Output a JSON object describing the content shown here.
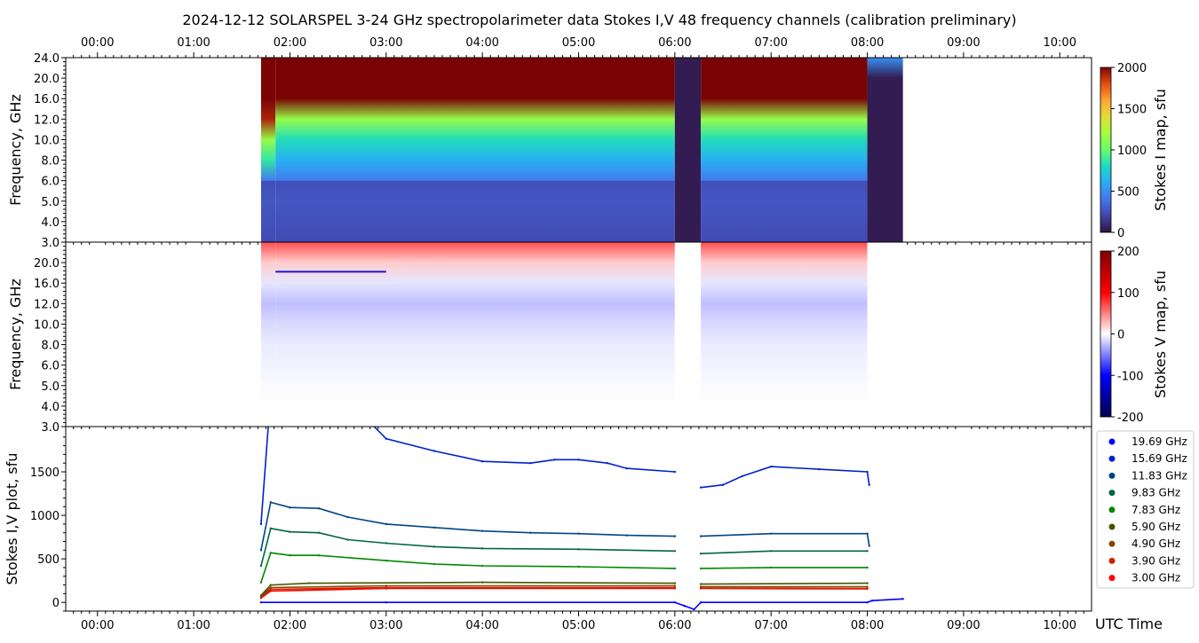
{
  "chart_data": {
    "type": "heatmap",
    "title": "2024-12-12  SOLARSPEL  3-24 GHz spectropolarimeter data   Stokes I,V   48 frequency channels   (calibration preliminary)",
    "time_axis": {
      "label": "UTC Time",
      "range_hours": [
        -0.33,
        10.33
      ],
      "ticks": [
        "00:00",
        "01:00",
        "02:00",
        "03:00",
        "04:00",
        "05:00",
        "06:00",
        "07:00",
        "08:00",
        "09:00",
        "10:00"
      ]
    },
    "freq_ticks": [
      "3.0",
      "4.0",
      "5.0",
      "6.0",
      "8.0",
      "10.0",
      "12.0",
      "16.0",
      "20.0",
      "24.0"
    ],
    "freq_ylabel": "Frequency, GHz",
    "segments": [
      {
        "start": 1.7,
        "end": 1.85,
        "kind": "transient"
      },
      {
        "start": 1.85,
        "end": 6.0,
        "kind": "data"
      },
      {
        "start": 6.0,
        "end": 6.27,
        "kind": "gap"
      },
      {
        "start": 6.27,
        "end": 8.0,
        "kind": "data"
      },
      {
        "start": 8.0,
        "end": 8.37,
        "kind": "gap"
      }
    ],
    "stokes_I_map": {
      "colorbar_label": "Stokes I map, sfu",
      "range": [
        0,
        2000
      ],
      "colorbar_ticks": [
        "0",
        "500",
        "1000",
        "1500",
        "2000"
      ],
      "profile_by_tick": [
        220,
        250,
        270,
        420,
        620,
        820,
        1150,
        2000,
        2000,
        2000
      ],
      "gap_value": 40
    },
    "stokes_V_map": {
      "colorbar_label": "Stokes V map, sfu",
      "range": [
        -200,
        200
      ],
      "colorbar_ticks": [
        "-200",
        "-100",
        "0",
        "100",
        "200"
      ],
      "profile_by_tick": [
        0,
        0,
        -2,
        -5,
        -8,
        -15,
        -25,
        -10,
        20,
        70
      ],
      "gap_value": 0
    },
    "line_plot": {
      "ylabel": "Stokes I,V plot, sfu",
      "ylim": [
        -100,
        2020
      ],
      "yticks": [
        "0",
        "500",
        "1000",
        "1500"
      ],
      "ytick_values": [
        0,
        500,
        1000,
        1500
      ],
      "series": [
        {
          "name": "19.69 GHz",
          "color": "#0000ff",
          "points": [
            [
              1.7,
              0
            ],
            [
              3,
              0
            ],
            [
              6,
              0
            ],
            [
              6.1,
              -40
            ],
            [
              6.2,
              -80
            ],
            [
              6.27,
              0
            ],
            [
              8,
              0
            ],
            [
              8.05,
              20
            ],
            [
              8.37,
              40
            ]
          ]
        },
        {
          "name": "15.69 GHz",
          "color": "#0022cc",
          "points": [
            [
              1.7,
              900
            ],
            [
              1.78,
              2100
            ],
            null,
            [
              2.85,
              2050
            ],
            [
              3.0,
              1880
            ],
            [
              3.5,
              1740
            ],
            [
              4.0,
              1620
            ],
            [
              4.5,
              1600
            ],
            [
              4.75,
              1640
            ],
            [
              5.0,
              1640
            ],
            [
              5.3,
              1600
            ],
            [
              5.5,
              1540
            ],
            [
              6.0,
              1500
            ],
            null,
            [
              6.27,
              1320
            ],
            [
              6.5,
              1350
            ],
            [
              6.7,
              1450
            ],
            [
              7.0,
              1560
            ],
            [
              7.5,
              1530
            ],
            [
              8.0,
              1500
            ],
            [
              8.02,
              1350
            ]
          ]
        },
        {
          "name": "11.83 GHz",
          "color": "#004488",
          "points": [
            [
              1.7,
              600
            ],
            [
              1.8,
              1150
            ],
            [
              2.0,
              1090
            ],
            [
              2.3,
              1080
            ],
            [
              2.6,
              980
            ],
            [
              3.0,
              900
            ],
            [
              3.5,
              860
            ],
            [
              4.0,
              820
            ],
            [
              4.5,
              800
            ],
            [
              5.0,
              790
            ],
            [
              5.5,
              770
            ],
            [
              6.0,
              760
            ],
            null,
            [
              6.27,
              760
            ],
            [
              7.0,
              790
            ],
            [
              8.0,
              790
            ],
            [
              8.02,
              650
            ]
          ]
        },
        {
          "name": "9.83 GHz",
          "color": "#006644",
          "points": [
            [
              1.7,
              420
            ],
            [
              1.8,
              850
            ],
            [
              2.0,
              810
            ],
            [
              2.3,
              800
            ],
            [
              2.6,
              720
            ],
            [
              3.0,
              680
            ],
            [
              3.5,
              640
            ],
            [
              4.0,
              620
            ],
            [
              5.0,
              610
            ],
            [
              6.0,
              590
            ],
            null,
            [
              6.27,
              560
            ],
            [
              7.0,
              590
            ],
            [
              8.0,
              590
            ]
          ]
        },
        {
          "name": "7.83 GHz",
          "color": "#008800",
          "points": [
            [
              1.7,
              230
            ],
            [
              1.8,
              570
            ],
            [
              2.0,
              540
            ],
            [
              2.3,
              540
            ],
            [
              3.0,
              480
            ],
            [
              3.5,
              440
            ],
            [
              4.0,
              420
            ],
            [
              5.0,
              410
            ],
            [
              6.0,
              390
            ],
            null,
            [
              6.27,
              390
            ],
            [
              7.0,
              400
            ],
            [
              8.0,
              400
            ]
          ]
        },
        {
          "name": "5.90 GHz",
          "color": "#445500",
          "points": [
            [
              1.7,
              80
            ],
            [
              1.8,
              200
            ],
            [
              2.2,
              220
            ],
            [
              4.0,
              230
            ],
            [
              6.0,
              220
            ],
            null,
            [
              6.27,
              210
            ],
            [
              8.0,
              220
            ]
          ]
        },
        {
          "name": "4.90 GHz",
          "color": "#884400",
          "points": [
            [
              1.7,
              70
            ],
            [
              1.8,
              170
            ],
            [
              3.0,
              190
            ],
            [
              6.0,
              190
            ],
            null,
            [
              6.27,
              180
            ],
            [
              8.0,
              180
            ]
          ]
        },
        {
          "name": "3.90 GHz",
          "color": "#cc2200",
          "points": [
            [
              1.7,
              60
            ],
            [
              1.8,
              150
            ],
            [
              3.0,
              170
            ],
            [
              6.0,
              170
            ],
            null,
            [
              6.27,
              165
            ],
            [
              8.0,
              160
            ]
          ]
        },
        {
          "name": "3.00 GHz",
          "color": "#ff0000",
          "points": [
            [
              1.7,
              50
            ],
            [
              1.8,
              130
            ],
            [
              3.0,
              160
            ],
            [
              6.0,
              160
            ],
            null,
            [
              6.27,
              160
            ],
            [
              8.0,
              155
            ]
          ]
        }
      ]
    }
  }
}
